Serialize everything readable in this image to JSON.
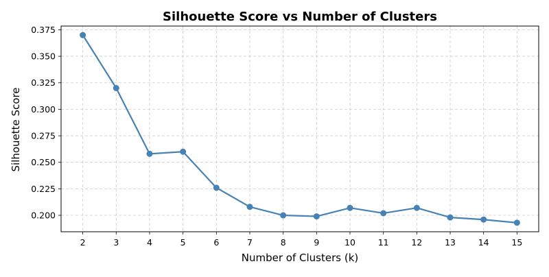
{
  "chart_data": {
    "type": "line",
    "title": "Silhouette Score vs Number of Clusters",
    "xlabel": "Number of Clusters (k)",
    "ylabel": "Silhouette Score",
    "x": [
      2,
      3,
      4,
      5,
      6,
      7,
      8,
      9,
      10,
      11,
      12,
      13,
      14,
      15
    ],
    "series": [
      {
        "values": [
          0.37,
          0.32,
          0.258,
          0.26,
          0.226,
          0.208,
          0.2,
          0.199,
          0.207,
          0.202,
          0.207,
          0.198,
          0.196,
          0.193
        ]
      }
    ],
    "xlim": [
      1.35,
      15.65
    ],
    "ylim": [
      0.1845,
      0.3785
    ],
    "x_ticks": [
      "2",
      "3",
      "4",
      "5",
      "6",
      "7",
      "8",
      "9",
      "10",
      "11",
      "12",
      "13",
      "14",
      "15"
    ],
    "y_ticks": [
      "0.200",
      "0.225",
      "0.250",
      "0.275",
      "0.300",
      "0.325",
      "0.350",
      "0.375"
    ],
    "grid": true,
    "grid_style": "dashed",
    "line_color": "#4682b4",
    "marker": "circle"
  }
}
